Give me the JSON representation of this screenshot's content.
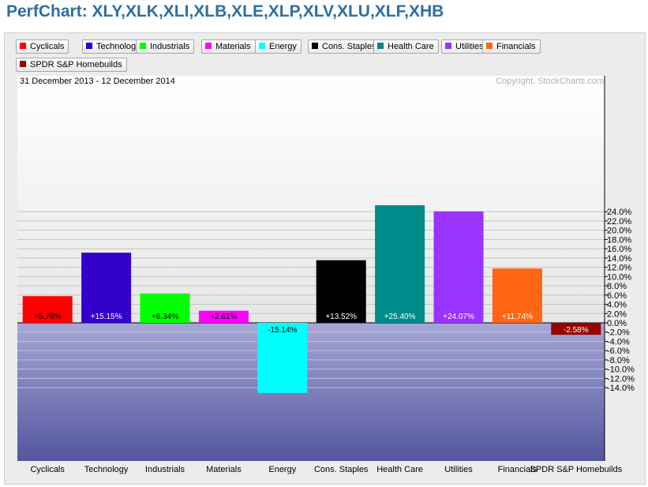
{
  "title": "PerfChart: XLY,XLK,XLI,XLB,XLE,XLP,XLV,XLU,XLF,XHB",
  "date_range": "31 December 2013 - 12 December 2014",
  "copyright": "Copyright, StockCharts.com",
  "legend": [
    {
      "label": "Cyclicals",
      "color": "#ff0000"
    },
    {
      "label": "Technology",
      "color": "#3300cc"
    },
    {
      "label": "Industrials",
      "color": "#00ff00"
    },
    {
      "label": "Materials",
      "color": "#ff00ff"
    },
    {
      "label": "Energy",
      "color": "#00ffff"
    },
    {
      "label": "Cons. Staples",
      "color": "#000000"
    },
    {
      "label": "Health Care",
      "color": "#008b8b"
    },
    {
      "label": "Utilities",
      "color": "#9933ff"
    },
    {
      "label": "Financials",
      "color": "#ff6611"
    },
    {
      "label": "SPDR S&P Homebuilds",
      "color": "#990000"
    }
  ],
  "chart_data": {
    "type": "bar",
    "categories": [
      "Cyclicals",
      "Technology",
      "Industrials",
      "Materials",
      "Energy",
      "Cons. Staples",
      "Health Care",
      "Utilities",
      "Financials",
      "SPDR S&P Homebuilds"
    ],
    "category_tick_labels": [
      "Cyclicals",
      "Technology",
      "Industrials",
      "Materials",
      "Energy",
      "Cons. Staples",
      "Health Care",
      "Utilities",
      "Financials",
      "SPDR S&P Homebuilds"
    ],
    "values": [
      5.76,
      15.15,
      6.34,
      2.61,
      -15.14,
      13.52,
      25.4,
      24.07,
      11.74,
      -2.58
    ],
    "value_labels": [
      "+5.76%",
      "+15.15%",
      "+6.34%",
      "+2.61%",
      "-15.14%",
      "+13.52%",
      "+25.40%",
      "+24.07%",
      "+11.74%",
      "-2.58%"
    ],
    "colors": [
      "#ff0000",
      "#3300cc",
      "#00ff00",
      "#ff00ff",
      "#00ffff",
      "#000000",
      "#008b8b",
      "#9933ff",
      "#ff6611",
      "#990000"
    ],
    "label_colors": [
      "#000000",
      "#ffffff",
      "#000000",
      "#000000",
      "#000000",
      "#ffffff",
      "#ffffff",
      "#ffffff",
      "#ffffff",
      "#ffffff"
    ],
    "y_ticks": [
      24,
      22,
      20,
      18,
      16,
      14,
      12,
      10,
      8,
      6,
      4,
      2,
      0,
      -2,
      -4,
      -6,
      -8,
      -10,
      -12,
      -14
    ],
    "y_tick_labels": [
      "24.0%",
      "22.0%",
      "20.0%",
      "18.0%",
      "16.0%",
      "14.0%",
      "12.0%",
      "10.0%",
      "8.0%",
      "6.0%",
      "4.0%",
      "2.0%",
      "0.0%",
      "-2.0%",
      "-4.0%",
      "-6.0%",
      "-8.0%",
      "-10.0%",
      "-12.0%",
      "-14.0%"
    ],
    "ylim": [
      -15.14,
      25.4
    ],
    "grid": true,
    "y_axis_position": "right",
    "title": "",
    "xlabel": "",
    "ylabel": ""
  }
}
